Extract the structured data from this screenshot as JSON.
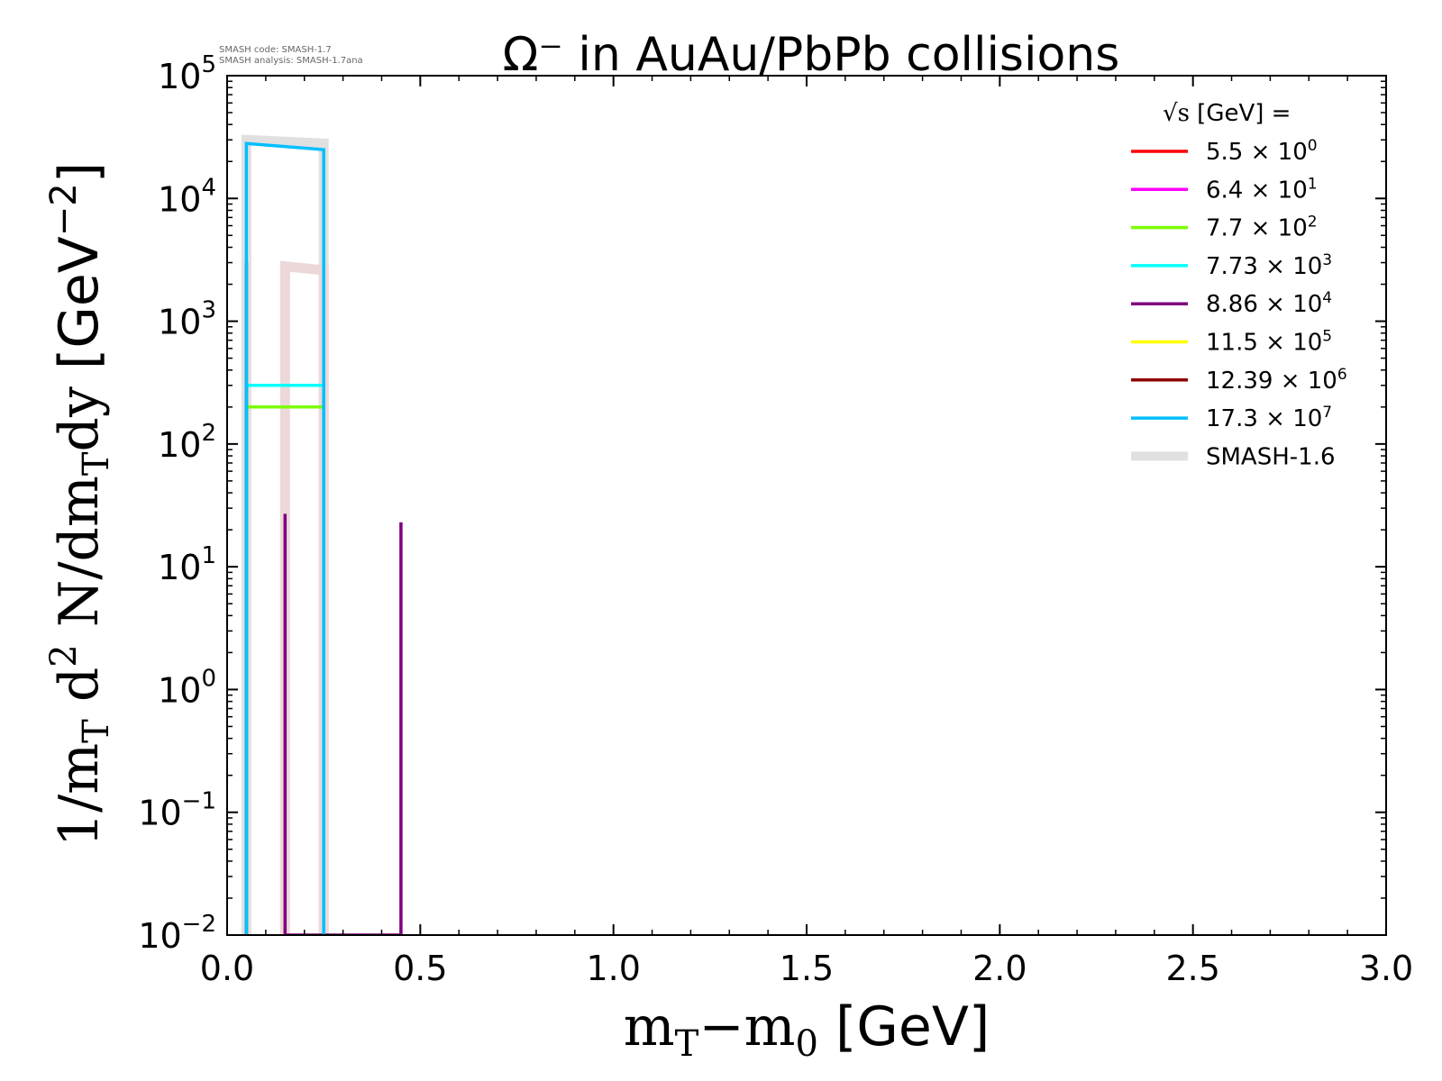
{
  "chart_data": {
    "type": "line",
    "title": "Ω⁻ in AuAu/PbPb collisions",
    "xlabel": {
      "lead": "m",
      "sub1": "T",
      "mid": "−m",
      "sub2": "0",
      "tail": " [GeV]"
    },
    "ylabel": {
      "p1": "1/m",
      "p1sub": "T",
      "p2": " d",
      "p2sup": "2",
      "p3": " N/dm",
      "p3sub": "T",
      "p4": "dy",
      "p5": " [GeV",
      "p5sup": "−2",
      "p6": "]"
    },
    "xlim": [
      0,
      3
    ],
    "ylim": [
      0.01,
      100000
    ],
    "yscale": "log",
    "grid": false,
    "legend_position": "top-right",
    "x_ticks": [
      "0.0",
      "0.5",
      "1.0",
      "1.5",
      "2.0",
      "2.5",
      "3.0"
    ],
    "y_ticks": [
      {
        "base": "10",
        "exp": "−2"
      },
      {
        "base": "10",
        "exp": "−1"
      },
      {
        "base": "10",
        "exp": "0"
      },
      {
        "base": "10",
        "exp": "1"
      },
      {
        "base": "10",
        "exp": "2"
      },
      {
        "base": "10",
        "exp": "3"
      },
      {
        "base": "10",
        "exp": "4"
      },
      {
        "base": "10",
        "exp": "5"
      }
    ],
    "code_info": {
      "line1": "SMASH code:      SMASH-1.7",
      "line2": "SMASH analysis: SMASH-1.7ana"
    },
    "legend_title": {
      "sym": "√s",
      "rest": "  [GeV] ="
    },
    "series": [
      {
        "name": "5.5",
        "mult": "× 10",
        "exp": "0",
        "color": "#ff0000",
        "x": [
          0.05,
          0.05
        ],
        "y": [
          0.01,
          0.01
        ]
      },
      {
        "name": "6.4",
        "mult": "× 10",
        "exp": "1",
        "color": "#ff00ff",
        "x": [
          0.05,
          0.05
        ],
        "y": [
          0.01,
          0.01
        ]
      },
      {
        "name": "7.7",
        "mult": "× 10",
        "exp": "2",
        "color": "#7cfc00",
        "x": [
          0.05,
          0.05,
          0.25,
          0.25
        ],
        "y": [
          0.01,
          200,
          200,
          0.01
        ]
      },
      {
        "name": "7.73",
        "mult": "× 10",
        "exp": "3",
        "color": "#00ffff",
        "x": [
          0.05,
          0.05,
          0.25,
          0.25
        ],
        "y": [
          0.01,
          300,
          300,
          0.01
        ]
      },
      {
        "name": "8.86",
        "mult": "× 10",
        "exp": "4",
        "color": "#800080",
        "x": [
          0.15,
          0.15,
          0.15,
          0.45,
          0.45,
          0.45
        ],
        "y": [
          0.01,
          27,
          0.01,
          0.01,
          23,
          0.01
        ]
      },
      {
        "name": "11.5",
        "mult": "× 10",
        "exp": "5",
        "color": "#ffff00",
        "x": [
          0.05,
          0.05
        ],
        "y": [
          0.01,
          0.01
        ]
      },
      {
        "name": "12.39",
        "mult": "× 10",
        "exp": "6",
        "color": "#8b0000",
        "x": [
          0.05,
          0.05,
          0.05
        ],
        "y": [
          0.01,
          3000,
          0.01
        ]
      },
      {
        "name": "17.3",
        "mult": "× 10",
        "exp": "7",
        "color": "#00bfff",
        "x": [
          0.05,
          0.05,
          0.25,
          0.25
        ],
        "y": [
          0.01,
          28000,
          25000,
          0.01
        ]
      }
    ],
    "reference": [
      {
        "name": "SMASH-1.6",
        "color": "#e0e0e0",
        "x": [
          0.05,
          0.05,
          0.25,
          0.25
        ],
        "y": [
          0.01,
          30000,
          28000,
          0.01
        ]
      },
      {
        "name": "",
        "color": "#ecd8d8",
        "x": [
          0.15,
          0.15,
          0.25,
          0.25
        ],
        "y": [
          0.01,
          2800,
          2600,
          0.01
        ]
      }
    ]
  }
}
